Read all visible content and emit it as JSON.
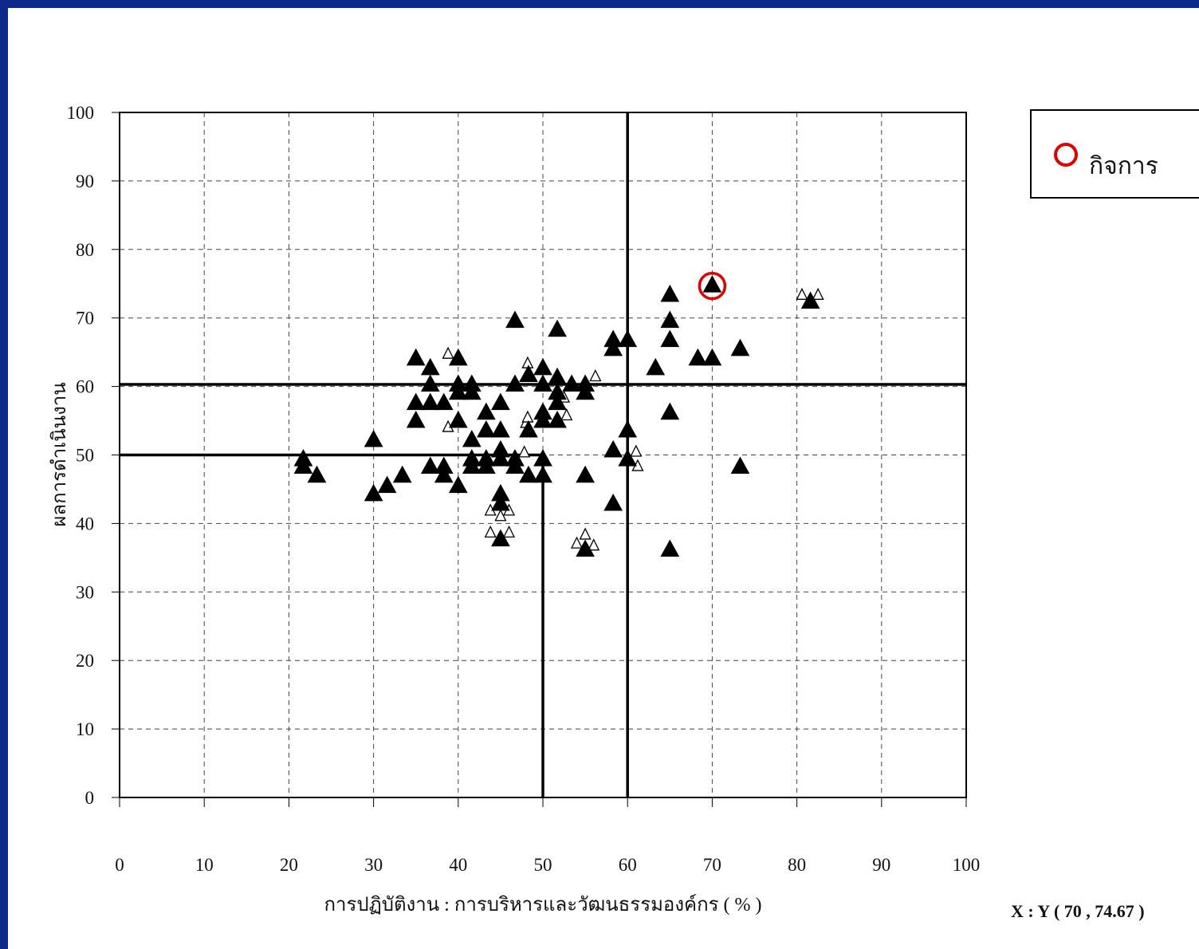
{
  "colors": {
    "frame": "#0b2a8a",
    "highlight": "#e00000",
    "marker": "#000000",
    "grid": "#444444"
  },
  "legend": {
    "label": "กิจการ",
    "marker_icon": "red-circle-icon"
  },
  "coordinate_readout": "X : Y ( 70 , 74.67 )",
  "chart_data": {
    "type": "scatter",
    "xlabel": "การปฏิบัติงาน : การบริหารและวัฒนธรรมองค์กร ( % )",
    "ylabel": "ผลการดำเนินงาน",
    "xlim": [
      0,
      100
    ],
    "ylim": [
      0,
      100
    ],
    "x_ticks": [
      "0",
      "10",
      "20",
      "30",
      "40",
      "50",
      "60",
      "70",
      "80",
      "90",
      "100"
    ],
    "y_ticks": [
      "0",
      "10",
      "20",
      "30",
      "40",
      "50",
      "60",
      "70",
      "80",
      "90",
      "100"
    ],
    "grid": true,
    "legend_position": "top-right outside plot",
    "reference_lines": {
      "vertical": [
        {
          "x": 50,
          "y_from": 0,
          "y_to": 50
        },
        {
          "x": 60,
          "y_from": 0,
          "y_to": 100
        }
      ],
      "horizontal": [
        {
          "y": 50,
          "x_from": 0,
          "x_to": 50
        },
        {
          "y": 60.3,
          "x_from": 0,
          "x_to": 100
        }
      ]
    },
    "highlight": {
      "x": 70,
      "y": 74.67
    },
    "filled_points": [
      [
        21.7,
        49.3
      ],
      [
        21.7,
        48.2
      ],
      [
        23.3,
        46.9
      ],
      [
        30,
        52.1
      ],
      [
        30,
        44.2
      ],
      [
        31.6,
        45.4
      ],
      [
        33.4,
        46.9
      ],
      [
        35,
        64.0
      ],
      [
        35,
        57.5
      ],
      [
        35,
        54.9
      ],
      [
        36.7,
        62.6
      ],
      [
        36.7,
        60.2
      ],
      [
        36.7,
        57.5
      ],
      [
        36.7,
        48.2
      ],
      [
        38.3,
        57.5
      ],
      [
        38.3,
        48.2
      ],
      [
        38.3,
        46.9
      ],
      [
        40,
        64.0
      ],
      [
        40,
        60.2
      ],
      [
        40,
        59.0
      ],
      [
        40,
        54.9
      ],
      [
        40,
        45.4
      ],
      [
        41.6,
        60.2
      ],
      [
        41.6,
        59.0
      ],
      [
        41.6,
        52.1
      ],
      [
        41.6,
        49.3
      ],
      [
        41.6,
        48.2
      ],
      [
        43.3,
        56.1
      ],
      [
        43.3,
        53.5
      ],
      [
        43.3,
        49.3
      ],
      [
        43.3,
        48.2
      ],
      [
        45,
        57.5
      ],
      [
        45,
        53.5
      ],
      [
        45,
        50.6
      ],
      [
        45,
        49.3
      ],
      [
        45,
        44.2
      ],
      [
        45,
        42.8
      ],
      [
        45,
        37.6
      ],
      [
        46.7,
        69.5
      ],
      [
        46.7,
        60.2
      ],
      [
        46.7,
        49.3
      ],
      [
        46.7,
        48.2
      ],
      [
        48.3,
        61.6
      ],
      [
        48.3,
        53.5
      ],
      [
        48.3,
        46.9
      ],
      [
        50,
        62.6
      ],
      [
        50,
        60.2
      ],
      [
        50,
        56.1
      ],
      [
        50,
        54.9
      ],
      [
        50,
        49.3
      ],
      [
        50,
        46.9
      ],
      [
        51.7,
        68.2
      ],
      [
        51.7,
        61.2
      ],
      [
        51.7,
        59.0
      ],
      [
        51.7,
        57.5
      ],
      [
        51.7,
        54.9
      ],
      [
        53.4,
        60.2
      ],
      [
        55,
        60.2
      ],
      [
        55,
        59.0
      ],
      [
        55,
        46.9
      ],
      [
        55,
        36.1
      ],
      [
        58.3,
        66.7
      ],
      [
        58.3,
        65.4
      ],
      [
        58.3,
        50.6
      ],
      [
        58.3,
        42.8
      ],
      [
        60,
        66.7
      ],
      [
        60,
        53.5
      ],
      [
        60,
        49.3
      ],
      [
        63.3,
        62.6
      ],
      [
        65,
        73.3
      ],
      [
        65,
        69.5
      ],
      [
        65,
        66.7
      ],
      [
        65,
        56.1
      ],
      [
        65,
        36.1
      ],
      [
        68.3,
        64.0
      ],
      [
        70,
        64.0
      ],
      [
        70,
        74.67
      ],
      [
        73.3,
        65.4
      ],
      [
        73.3,
        48.2
      ],
      [
        81.6,
        72.3
      ]
    ],
    "hollow_points": [
      [
        38.8,
        64.7
      ],
      [
        38.8,
        54.0
      ],
      [
        43.8,
        41.8
      ],
      [
        43.8,
        38.6
      ],
      [
        45,
        41.0
      ],
      [
        46,
        41.8
      ],
      [
        46,
        38.6
      ],
      [
        48,
        54.6
      ],
      [
        48.2,
        55.4
      ],
      [
        48.2,
        63.3
      ],
      [
        47.8,
        50.3
      ],
      [
        52.5,
        58.3
      ],
      [
        52.8,
        55.7
      ],
      [
        54,
        37.0
      ],
      [
        55,
        38.3
      ],
      [
        56,
        36.7
      ],
      [
        56.2,
        61.4
      ],
      [
        61,
        50.4
      ],
      [
        61.2,
        48.3
      ],
      [
        80.6,
        73.3
      ],
      [
        82.5,
        73.3
      ]
    ]
  }
}
